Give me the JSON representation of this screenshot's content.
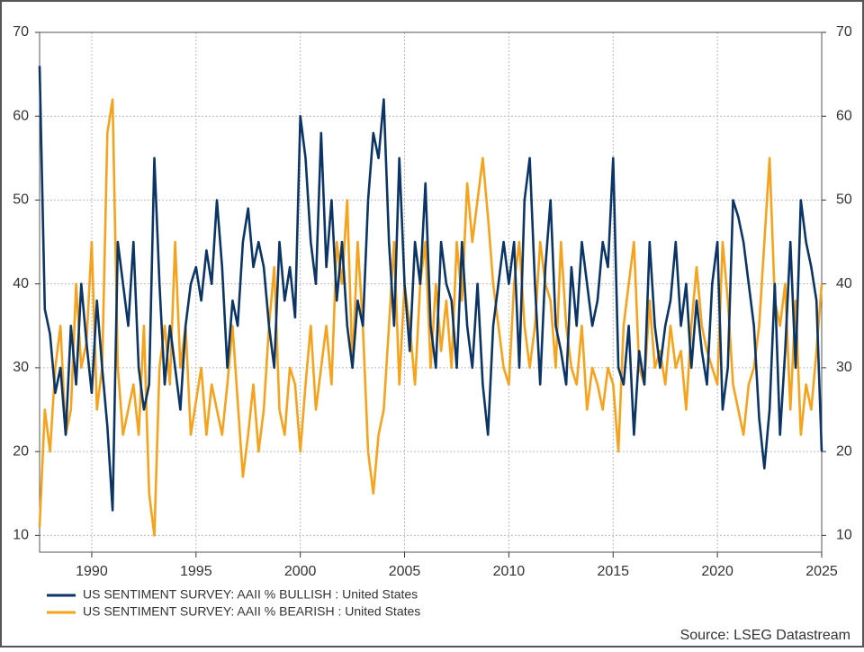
{
  "chart_data": {
    "type": "line",
    "source": "Source: LSEG Datastream",
    "x": [
      1987.5,
      1987.75,
      1988,
      1988.25,
      1988.5,
      1988.75,
      1989,
      1989.25,
      1989.5,
      1989.75,
      1990,
      1990.25,
      1990.5,
      1990.75,
      1991,
      1991.25,
      1991.5,
      1991.75,
      1992,
      1992.25,
      1992.5,
      1992.75,
      1993,
      1993.25,
      1993.5,
      1993.75,
      1994,
      1994.25,
      1994.5,
      1994.75,
      1995,
      1995.25,
      1995.5,
      1995.75,
      1996,
      1996.25,
      1996.5,
      1996.75,
      1997,
      1997.25,
      1997.5,
      1997.75,
      1998,
      1998.25,
      1998.5,
      1998.75,
      1999,
      1999.25,
      1999.5,
      1999.75,
      2000,
      2000.25,
      2000.5,
      2000.75,
      2001,
      2001.25,
      2001.5,
      2001.75,
      2002,
      2002.25,
      2002.5,
      2002.75,
      2003,
      2003.25,
      2003.5,
      2003.75,
      2004,
      2004.25,
      2004.5,
      2004.75,
      2005,
      2005.25,
      2005.5,
      2005.75,
      2006,
      2006.25,
      2006.5,
      2006.75,
      2007,
      2007.25,
      2007.5,
      2007.75,
      2008,
      2008.25,
      2008.5,
      2008.75,
      2009,
      2009.25,
      2009.5,
      2009.75,
      2010,
      2010.25,
      2010.5,
      2010.75,
      2011,
      2011.25,
      2011.5,
      2011.75,
      2012,
      2012.25,
      2012.5,
      2012.75,
      2013,
      2013.25,
      2013.5,
      2013.75,
      2014,
      2014.25,
      2014.5,
      2014.75,
      2015,
      2015.25,
      2015.5,
      2015.75,
      2016,
      2016.25,
      2016.5,
      2016.75,
      2017,
      2017.25,
      2017.5,
      2017.75,
      2018,
      2018.25,
      2018.5,
      2018.75,
      2019,
      2019.25,
      2019.5,
      2019.75,
      2020,
      2020.25,
      2020.5,
      2020.75,
      2021,
      2021.25,
      2021.5,
      2021.75,
      2022,
      2022.25,
      2022.5,
      2022.75,
      2023,
      2023.25,
      2023.5,
      2023.75,
      2024,
      2024.25,
      2024.5,
      2024.75,
      2025
    ],
    "series": [
      {
        "name": "US SENTIMENT SURVEY: AAII % BULLISH : United States",
        "color": "#0b3566",
        "values": [
          66,
          37,
          34,
          27,
          30,
          22,
          35,
          28,
          40,
          33,
          27,
          38,
          30,
          23,
          13,
          45,
          40,
          35,
          45,
          30,
          25,
          28,
          55,
          40,
          28,
          35,
          30,
          25,
          35,
          40,
          42,
          38,
          44,
          40,
          50,
          42,
          30,
          38,
          35,
          45,
          49,
          42,
          45,
          42,
          35,
          30,
          45,
          38,
          42,
          36,
          60,
          55,
          45,
          40,
          58,
          42,
          50,
          38,
          45,
          35,
          30,
          38,
          35,
          50,
          58,
          55,
          62,
          45,
          35,
          55,
          40,
          32,
          45,
          40,
          52,
          35,
          30,
          45,
          40,
          38,
          30,
          45,
          35,
          30,
          40,
          28,
          22,
          35,
          40,
          45,
          40,
          45,
          30,
          50,
          55,
          40,
          28,
          42,
          50,
          35,
          32,
          28,
          42,
          35,
          45,
          40,
          35,
          38,
          45,
          42,
          55,
          30,
          28,
          35,
          22,
          32,
          28,
          45,
          35,
          30,
          35,
          38,
          45,
          35,
          40,
          30,
          38,
          32,
          28,
          40,
          45,
          25,
          30,
          50,
          48,
          45,
          40,
          35,
          24,
          18,
          25,
          40,
          22,
          32,
          45,
          30,
          50,
          45,
          42,
          38,
          20
        ]
      },
      {
        "name": "US SENTIMENT SURVEY: AAII % BEARISH : United States",
        "color": "#f7a21b",
        "values": [
          11,
          25,
          20,
          30,
          35,
          22,
          25,
          40,
          30,
          33,
          45,
          25,
          30,
          58,
          62,
          30,
          22,
          25,
          28,
          22,
          35,
          15,
          10,
          30,
          35,
          28,
          45,
          30,
          35,
          22,
          26,
          30,
          22,
          28,
          25,
          22,
          28,
          35,
          26,
          17,
          22,
          28,
          20,
          25,
          35,
          42,
          25,
          22,
          30,
          28,
          20,
          28,
          35,
          25,
          30,
          35,
          28,
          45,
          40,
          50,
          30,
          45,
          35,
          20,
          15,
          22,
          25,
          35,
          45,
          28,
          40,
          35,
          28,
          40,
          45,
          30,
          40,
          32,
          38,
          30,
          45,
          38,
          52,
          45,
          50,
          55,
          48,
          40,
          35,
          30,
          28,
          40,
          45,
          35,
          30,
          35,
          45,
          40,
          38,
          30,
          45,
          35,
          30,
          28,
          35,
          25,
          30,
          28,
          25,
          30,
          28,
          20,
          35,
          40,
          45,
          30,
          28,
          38,
          30,
          32,
          28,
          35,
          30,
          32,
          25,
          35,
          42,
          35,
          32,
          30,
          28,
          45,
          38,
          28,
          25,
          22,
          28,
          30,
          35,
          45,
          55,
          38,
          35,
          40,
          25,
          38,
          22,
          28,
          25,
          32,
          40
        ]
      }
    ],
    "xlim": [
      1987.5,
      2025.0
    ],
    "xticks": [
      1990,
      1995,
      2000,
      2005,
      2010,
      2015,
      2020,
      2025
    ],
    "ylim": [
      8,
      70
    ],
    "yticks": [
      10,
      20,
      30,
      40,
      50,
      60,
      70
    ],
    "grid": true,
    "legend": "bottom-left"
  }
}
